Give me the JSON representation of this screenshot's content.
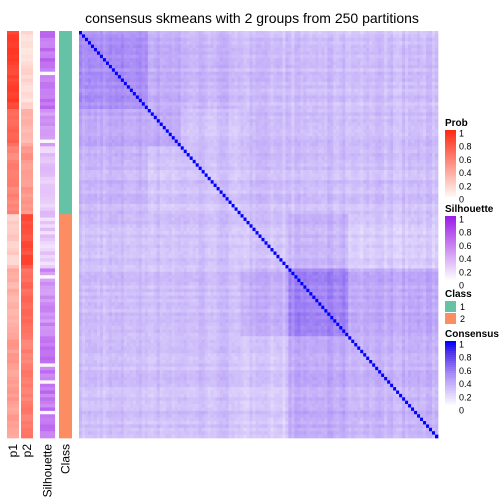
{
  "chart_data": {
    "type": "heatmap",
    "title": "consensus skmeans with 2 groups from 250 partitions",
    "n_samples": 120,
    "annotation_columns": [
      "p1",
      "p2",
      "Silhouette",
      "Class"
    ],
    "class_counts": {
      "1": 54,
      "2": 66
    },
    "block_structure": {
      "class1_subgroups": [
        {
          "size": 23,
          "within": 0.48
        },
        {
          "size": 11,
          "within": 0.37
        },
        {
          "size": 20,
          "within": 0.27
        }
      ],
      "class2_subgroups": [
        {
          "size": 16,
          "within": 0.26
        },
        {
          "size": 20,
          "within": 0.52
        },
        {
          "size": 30,
          "within": 0.33
        }
      ],
      "between_classes": 0.28,
      "diagonal": 1.0
    },
    "prob_p1_by_subgroup": [
      0.88,
      0.68,
      0.55,
      0.18,
      0.32,
      0.42
    ],
    "silhouette_by_subgroup": [
      0.62,
      0.45,
      0.25,
      0.22,
      0.5,
      0.6
    ],
    "legends": [
      {
        "title": "Prob",
        "ticks": [
          "1",
          "0.8",
          "0.6",
          "0.4",
          "0.2",
          "0"
        ],
        "colors": [
          "#ff2a15",
          "#fff2ee"
        ]
      },
      {
        "title": "Silhouette",
        "ticks": [
          "1",
          "0.8",
          "0.6",
          "0.4",
          "0.2",
          "0"
        ],
        "colors": [
          "#9c1ee8",
          "#ffffff"
        ]
      },
      {
        "title": "Class",
        "ticks": [
          "1",
          "2"
        ],
        "colors": [
          "#66c2a5",
          "#fc8d62"
        ]
      },
      {
        "title": "Consensus",
        "ticks": [
          "1",
          "0.8",
          "0.6",
          "0.4",
          "0.2",
          "0"
        ],
        "colors": [
          "#0000ff",
          "#ffffff"
        ]
      }
    ]
  }
}
